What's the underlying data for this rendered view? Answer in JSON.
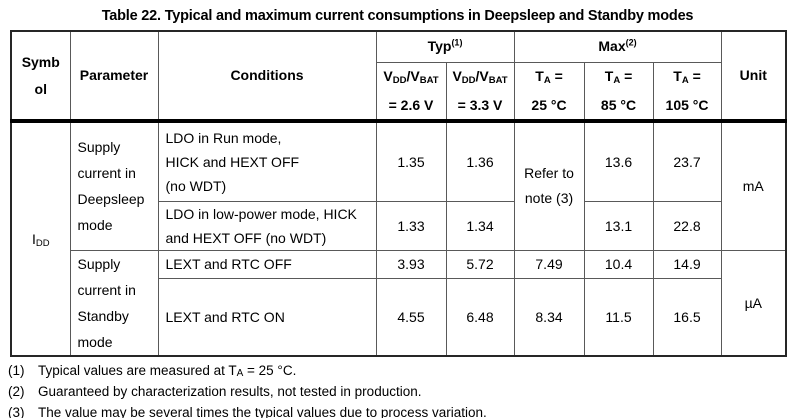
{
  "title": "Table 22. Typical and maximum current consumptions in Deepsleep and Standby modes",
  "header": {
    "symbol_lines": [
      "Symb",
      "ol"
    ],
    "parameter": "Parameter",
    "conditions": "Conditions",
    "typ": {
      "label": "Typ",
      "sup": "(1)"
    },
    "max": {
      "label": "Max",
      "sup": "(2)"
    },
    "unit": "Unit",
    "typ_cols": [
      {
        "v1": "V",
        "sub1": "DD",
        "v2": "/V",
        "sub2": "BAT",
        "line2": "= 2.6 V"
      },
      {
        "v1": "V",
        "sub1": "DD",
        "v2": "/V",
        "sub2": "BAT",
        "line2": "= 3.3 V"
      }
    ],
    "max_cols": [
      {
        "t": "T",
        "sub": "A",
        "eq": " =",
        "line2": "25 °C"
      },
      {
        "t": "T",
        "sub": "A",
        "eq": " =",
        "line2": "85 °C"
      },
      {
        "t": "T",
        "sub": "A",
        "eq": " =",
        "line2": "105 °C"
      }
    ]
  },
  "body": {
    "symbol": {
      "base": "I",
      "sub": "DD"
    },
    "groups": [
      {
        "parameter_lines": [
          "Supply",
          "current in",
          "Deepsleep",
          "mode"
        ],
        "unit": "mA"
      },
      {
        "parameter_lines": [
          "Supply",
          "current in",
          "Standby",
          "mode"
        ],
        "unit": "µA"
      }
    ],
    "refer_lines": [
      "Refer to",
      "note (3)"
    ],
    "rows": [
      {
        "conditions_lines": [
          "LDO in Run mode,",
          "HICK and HEXT OFF",
          "(no WDT)"
        ],
        "typ_26": "1.35",
        "typ_33": "1.36",
        "max_85": "13.6",
        "max_105": "23.7"
      },
      {
        "conditions_lines": [
          "LDO in low-power mode, HICK",
          "and HEXT OFF (no WDT)"
        ],
        "typ_26": "1.33",
        "typ_33": "1.34",
        "max_85": "13.1",
        "max_105": "22.8"
      },
      {
        "conditions_lines": [
          "LEXT and RTC OFF"
        ],
        "typ_26": "3.93",
        "typ_33": "5.72",
        "max_25": "7.49",
        "max_85": "10.4",
        "max_105": "14.9"
      },
      {
        "conditions_lines": [
          "LEXT and RTC ON"
        ],
        "typ_26": "4.55",
        "typ_33": "6.48",
        "max_25": "8.34",
        "max_85": "11.5",
        "max_105": "16.5"
      }
    ]
  },
  "footnotes": [
    {
      "num": "(1)",
      "pre": "Typical values are measured at T",
      "sub": "A",
      "post": " = 25 °C."
    },
    {
      "num": "(2)",
      "pre": "Guaranteed by characterization results, not tested in production.",
      "sub": "",
      "post": ""
    },
    {
      "num": "(3)",
      "pre": "The value may be several times the typical values due to process variation.",
      "sub": "",
      "post": ""
    }
  ],
  "colors": {
    "text": "#000000",
    "background": "#ffffff",
    "border_inner": "#595959",
    "border_outer": "#262626",
    "header_separator": "#000000"
  }
}
